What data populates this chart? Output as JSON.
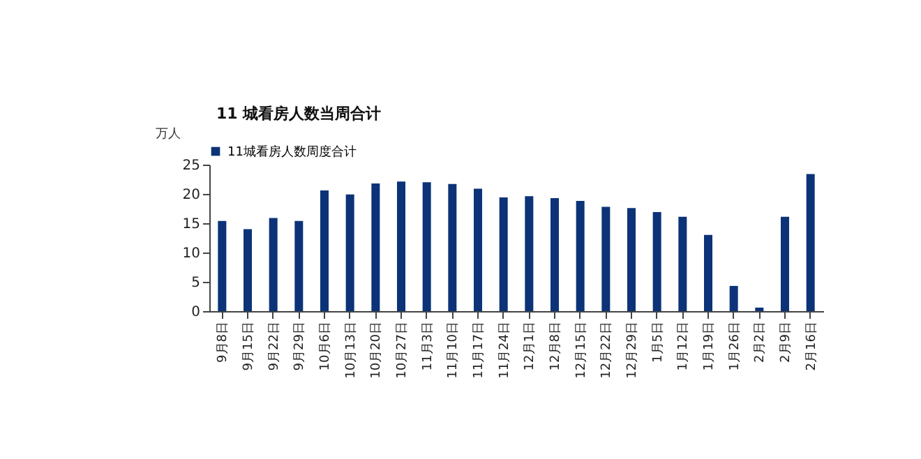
{
  "chart_data": {
    "type": "bar",
    "title": "11 城看房人数当周合计",
    "ylabel": "万人",
    "categories": [
      "9月8日",
      "9月15日",
      "9月22日",
      "9月29日",
      "10月6日",
      "10月13日",
      "10月20日",
      "10月27日",
      "11月3日",
      "11月10日",
      "11月17日",
      "11月24日",
      "12月1日",
      "12月8日",
      "12月15日",
      "12月22日",
      "12月29日",
      "1月5日",
      "1月12日",
      "1月19日",
      "1月26日",
      "2月2日",
      "2月9日",
      "2月16日"
    ],
    "series": [
      {
        "name": "11城看房人数周度合计",
        "color": "#0c3377",
        "values": [
          15.4,
          14.0,
          15.9,
          15.4,
          20.6,
          19.9,
          21.8,
          22.1,
          22.0,
          21.7,
          20.9,
          19.4,
          19.6,
          19.3,
          18.8,
          17.8,
          17.6,
          16.9,
          16.1,
          13.0,
          4.3,
          0.6,
          16.1,
          23.4
        ]
      }
    ],
    "ylim": [
      0,
      25
    ],
    "yticks": [
      0,
      5,
      10,
      15,
      20,
      25
    ],
    "grid": false,
    "legend": "top"
  }
}
